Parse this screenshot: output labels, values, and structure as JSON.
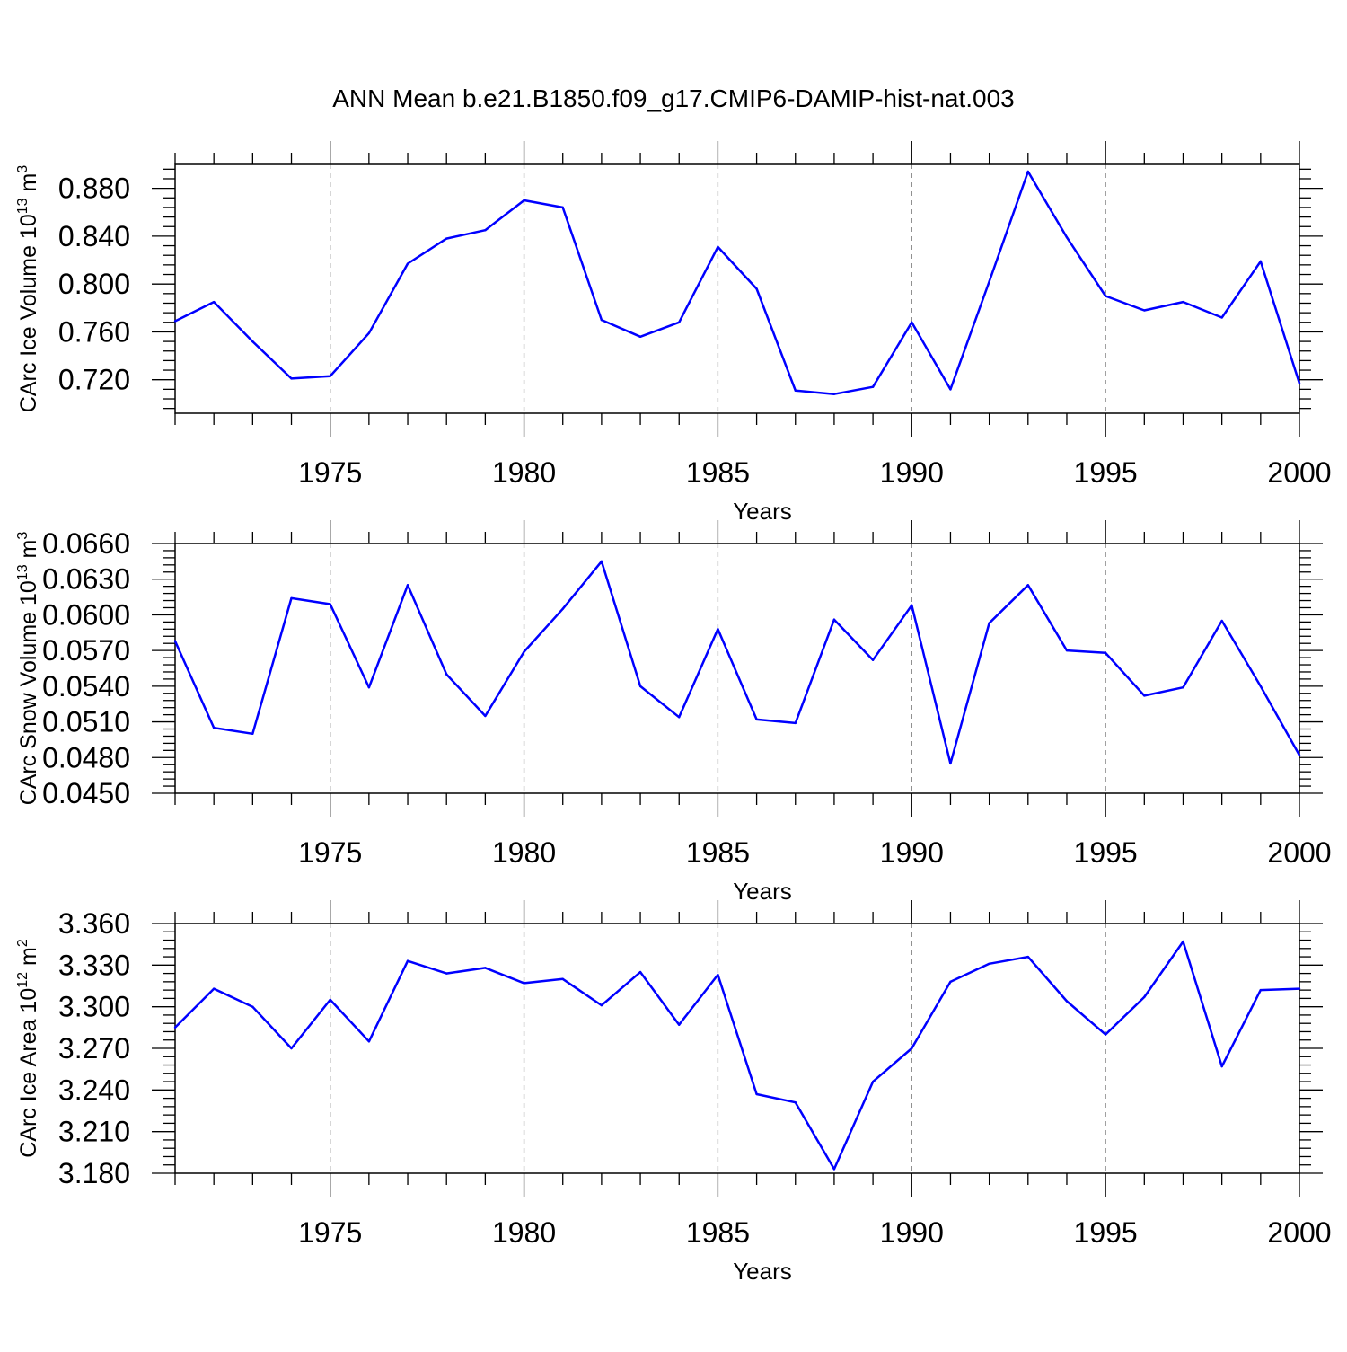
{
  "chart_data": {
    "type": "line",
    "title": "ANN Mean b.e21.B1850.f09_g17.CMIP6-DAMIP-hist-nat.003",
    "x_label": "Years",
    "x_range": [
      1971,
      2000
    ],
    "x_ticks": [
      1975,
      1980,
      1985,
      1990,
      1995,
      2000
    ],
    "x": [
      1971,
      1972,
      1973,
      1974,
      1975,
      1976,
      1977,
      1978,
      1979,
      1980,
      1981,
      1982,
      1983,
      1984,
      1985,
      1986,
      1987,
      1988,
      1989,
      1990,
      1991,
      1992,
      1993,
      1994,
      1995,
      1996,
      1997,
      1998,
      1999,
      2000
    ],
    "line_color": "#0000ff",
    "panels": [
      {
        "ylabel": {
          "text": "CArc Ice Volume 10",
          "exp": "13",
          "unit": "m",
          "unit_exp": "3"
        },
        "ylim": [
          0.692,
          0.9
        ],
        "y_ticks": [
          0.72,
          0.76,
          0.8,
          0.84,
          0.88
        ],
        "y_tick_labels": [
          "0.720",
          "0.760",
          "0.800",
          "0.840",
          "0.880"
        ],
        "series": [
          {
            "name": "CArc Ice Volume",
            "values": [
              0.769,
              0.785,
              0.752,
              0.721,
              0.723,
              0.759,
              0.817,
              0.838,
              0.845,
              0.87,
              0.864,
              0.77,
              0.756,
              0.768,
              0.831,
              0.796,
              0.711,
              0.708,
              0.714,
              0.768,
              0.712,
              0.802,
              0.894,
              0.839,
              0.79,
              0.778,
              0.785,
              0.772,
              0.819,
              0.717
            ]
          }
        ]
      },
      {
        "ylabel": {
          "text": "CArc Snow Volume 10",
          "exp": "13",
          "unit": "m",
          "unit_exp": "3"
        },
        "ylim": [
          0.045,
          0.066
        ],
        "y_ticks": [
          0.045,
          0.048,
          0.051,
          0.054,
          0.057,
          0.06,
          0.063,
          0.066
        ],
        "y_tick_labels": [
          "0.0450",
          "0.0480",
          "0.0510",
          "0.0540",
          "0.0570",
          "0.0600",
          "0.0630",
          "0.0660"
        ],
        "series": [
          {
            "name": "CArc Snow Volume",
            "values": [
              0.0578,
              0.0505,
              0.05,
              0.0614,
              0.0609,
              0.0539,
              0.0625,
              0.055,
              0.0515,
              0.0569,
              0.0605,
              0.0645,
              0.054,
              0.0514,
              0.0588,
              0.0512,
              0.0509,
              0.0596,
              0.0562,
              0.0608,
              0.0475,
              0.0593,
              0.0625,
              0.057,
              0.0568,
              0.0532,
              0.0539,
              0.0595,
              0.054,
              0.0482
            ]
          }
        ]
      },
      {
        "ylabel": {
          "text": "CArc Ice Area 10",
          "exp": "12",
          "unit": "m",
          "unit_exp": "2"
        },
        "ylim": [
          3.18,
          3.36
        ],
        "y_ticks": [
          3.18,
          3.21,
          3.24,
          3.27,
          3.3,
          3.33,
          3.36
        ],
        "y_tick_labels": [
          "3.180",
          "3.210",
          "3.240",
          "3.270",
          "3.300",
          "3.330",
          "3.360"
        ],
        "series": [
          {
            "name": "CArc Ice Area",
            "values": [
              3.285,
              3.313,
              3.3,
              3.27,
              3.305,
              3.275,
              3.333,
              3.324,
              3.328,
              3.317,
              3.32,
              3.301,
              3.325,
              3.287,
              3.323,
              3.237,
              3.231,
              3.183,
              3.246,
              3.27,
              3.318,
              3.331,
              3.336,
              3.304,
              3.28,
              3.307,
              3.347,
              3.257,
              3.312,
              3.313
            ]
          }
        ]
      }
    ]
  }
}
